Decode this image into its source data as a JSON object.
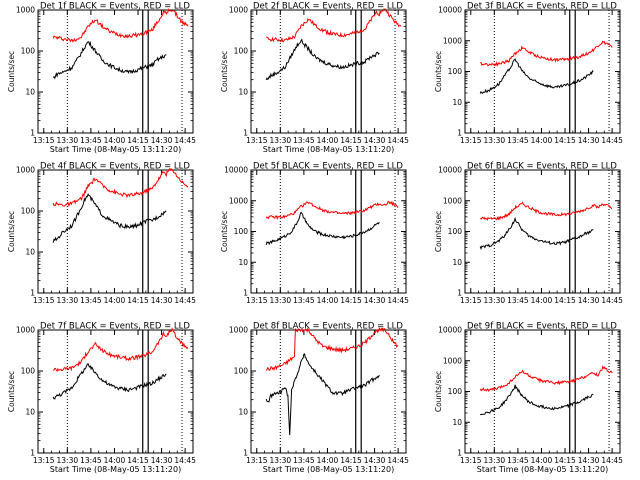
{
  "figure": {
    "background": "#ffffff",
    "series_colors": {
      "events": "#000000",
      "lld": "#ff0000"
    }
  },
  "x_tick_labels": [
    "13:15",
    "13:30",
    "13:45",
    "14:00",
    "14:15",
    "14:30",
    "14:45"
  ],
  "y_tick_labels": [
    "1",
    "10",
    "100",
    "1000",
    "10000"
  ],
  "chart_data": [
    {
      "type": "line",
      "title": "Det 1f BLACK = Events, RED = LLD",
      "xlabel": "Start Time (08-May-05 13:11:20)",
      "ylabel": "Counts/sec",
      "xlim": [
        13.1889,
        14.8333
      ],
      "ylim": [
        1,
        1000
      ],
      "y_scale": "log",
      "series": [
        {
          "color": "#ff0000",
          "x": [
            13.35,
            13.45,
            13.55,
            13.65,
            13.72,
            13.8,
            13.87,
            13.95,
            14.05,
            14.15,
            14.25,
            14.3,
            14.35,
            14.4,
            14.43,
            14.48,
            14.52,
            14.55,
            14.58,
            14.62,
            14.65,
            14.72,
            14.78
          ],
          "values": [
            220,
            200,
            180,
            220,
            400,
            580,
            400,
            300,
            250,
            230,
            250,
            260,
            300,
            320,
            420,
            600,
            900,
            800,
            1000,
            1000,
            800,
            500,
            400
          ]
        },
        {
          "color": "#000000",
          "x": [
            13.35,
            13.4,
            13.45,
            13.55,
            13.62,
            13.68,
            13.72,
            13.8,
            13.87,
            13.95,
            14.05,
            14.15,
            14.25,
            14.32,
            14.4,
            14.45,
            14.55
          ],
          "values": [
            22,
            28,
            30,
            40,
            70,
            120,
            170,
            100,
            60,
            45,
            35,
            30,
            35,
            40,
            45,
            60,
            80
          ]
        }
      ],
      "markers": {
        "dotted": [
          13.5,
          14.717
        ],
        "solid": [
          14.3,
          14.358
        ]
      }
    },
    {
      "type": "line",
      "title": "Det 2f BLACK = Events, RED = LLD",
      "xlabel": "Start Time (08-May-05 13:11:20)",
      "ylabel": "Counts/sec",
      "xlim": [
        13.1889,
        14.8333
      ],
      "ylim": [
        1,
        1000
      ],
      "y_scale": "log",
      "series": [
        {
          "color": "#ff0000",
          "x": [
            13.35,
            13.45,
            13.55,
            13.65,
            13.72,
            13.8,
            13.87,
            13.95,
            14.05,
            14.15,
            14.25,
            14.3,
            14.35,
            14.4,
            14.43,
            14.48,
            14.52,
            14.55,
            14.58,
            14.62,
            14.65,
            14.72,
            14.78
          ],
          "values": [
            200,
            190,
            180,
            220,
            400,
            600,
            420,
            320,
            260,
            240,
            260,
            280,
            320,
            340,
            450,
            650,
            900,
            800,
            1000,
            1000,
            800,
            500,
            400
          ]
        },
        {
          "color": "#000000",
          "x": [
            13.35,
            13.4,
            13.45,
            13.55,
            13.62,
            13.68,
            13.72,
            13.8,
            13.87,
            13.95,
            14.05,
            14.15,
            14.25,
            14.32,
            14.4,
            14.45,
            14.55
          ],
          "values": [
            20,
            25,
            28,
            40,
            80,
            140,
            180,
            110,
            70,
            55,
            45,
            40,
            45,
            50,
            55,
            70,
            90
          ]
        }
      ],
      "markers": {
        "dotted": [
          13.5,
          14.717
        ],
        "solid": [
          14.3,
          14.358
        ]
      }
    },
    {
      "type": "line",
      "title": "Det 3f BLACK = Events, RED = LLD",
      "xlabel": "",
      "ylabel": "Counts/sec",
      "xlim": [
        13.1889,
        14.8333
      ],
      "ylim": [
        1,
        10000
      ],
      "y_scale": "log",
      "series": [
        {
          "color": "#ff0000",
          "x": [
            13.35,
            13.45,
            13.55,
            13.65,
            13.72,
            13.8,
            13.87,
            13.95,
            14.05,
            14.15,
            14.25,
            14.3,
            14.35,
            14.4,
            14.45,
            14.5,
            14.55,
            14.6,
            14.65,
            14.7,
            14.75
          ],
          "values": [
            180,
            170,
            180,
            220,
            380,
            600,
            420,
            320,
            260,
            240,
            250,
            260,
            280,
            300,
            350,
            400,
            500,
            700,
            900,
            800,
            600
          ]
        },
        {
          "color": "#000000",
          "x": [
            13.35,
            13.45,
            13.55,
            13.62,
            13.68,
            13.72,
            13.8,
            13.87,
            13.95,
            14.05,
            14.15,
            14.25,
            14.32,
            14.4,
            14.45,
            14.55
          ],
          "values": [
            20,
            25,
            40,
            80,
            150,
            250,
            100,
            60,
            45,
            35,
            30,
            35,
            40,
            50,
            60,
            100
          ]
        }
      ],
      "markers": {
        "dotted": [
          13.5,
          14.717
        ],
        "solid": [
          14.3,
          14.358
        ]
      }
    },
    {
      "type": "line",
      "title": "Det 4f BLACK = Events, RED = LLD",
      "xlabel": "",
      "ylabel": "Counts/sec",
      "xlim": [
        13.1889,
        14.8333
      ],
      "ylim": [
        1,
        1000
      ],
      "y_scale": "log",
      "series": [
        {
          "color": "#ff0000",
          "x": [
            13.35,
            13.45,
            13.55,
            13.65,
            13.72,
            13.8,
            13.87,
            13.95,
            14.05,
            14.15,
            14.25,
            14.3,
            14.35,
            14.4,
            14.43,
            14.48,
            14.52,
            14.55,
            14.58,
            14.62,
            14.65,
            14.72,
            14.78
          ],
          "values": [
            150,
            140,
            150,
            200,
            400,
            620,
            420,
            320,
            260,
            240,
            260,
            280,
            320,
            350,
            450,
            650,
            900,
            800,
            1000,
            1000,
            800,
            500,
            400
          ]
        },
        {
          "color": "#000000",
          "x": [
            13.35,
            13.4,
            13.45,
            13.55,
            13.62,
            13.68,
            13.72,
            13.8,
            13.87,
            13.95,
            14.05,
            14.15,
            14.25,
            14.32,
            14.4,
            14.45,
            14.55
          ],
          "values": [
            18,
            22,
            30,
            45,
            90,
            180,
            250,
            140,
            80,
            60,
            45,
            40,
            45,
            55,
            60,
            70,
            100
          ]
        }
      ],
      "markers": {
        "dotted": [
          13.5,
          14.717
        ],
        "solid": [
          14.3,
          14.358
        ]
      }
    },
    {
      "type": "line",
      "title": "Det 5f BLACK = Events, RED = LLD",
      "xlabel": "",
      "ylabel": "Counts/sec",
      "xlim": [
        13.1889,
        14.8333
      ],
      "ylim": [
        1,
        10000
      ],
      "y_scale": "log",
      "series": [
        {
          "color": "#ff0000",
          "x": [
            13.35,
            13.45,
            13.55,
            13.65,
            13.72,
            13.8,
            13.87,
            13.95,
            14.05,
            14.15,
            14.25,
            14.3,
            14.35,
            14.4,
            14.45,
            14.5,
            14.55,
            14.6,
            14.65,
            14.7,
            14.75
          ],
          "values": [
            300,
            290,
            300,
            400,
            650,
            900,
            650,
            500,
            420,
            380,
            400,
            420,
            450,
            500,
            600,
            700,
            800,
            700,
            900,
            800,
            600
          ]
        },
        {
          "color": "#000000",
          "x": [
            13.35,
            13.45,
            13.55,
            13.62,
            13.68,
            13.72,
            13.8,
            13.87,
            13.95,
            14.05,
            14.15,
            14.25,
            14.32,
            14.4,
            14.45,
            14.55
          ],
          "values": [
            40,
            50,
            70,
            100,
            200,
            400,
            150,
            100,
            80,
            70,
            65,
            70,
            80,
            100,
            120,
            200
          ]
        }
      ],
      "markers": {
        "dotted": [
          13.5,
          14.717
        ],
        "solid": [
          14.3,
          14.358
        ]
      }
    },
    {
      "type": "line",
      "title": "Det 6f BLACK = Events, RED = LLD",
      "xlabel": "",
      "ylabel": "Counts/sec",
      "xlim": [
        13.1889,
        14.8333
      ],
      "ylim": [
        1,
        10000
      ],
      "y_scale": "log",
      "series": [
        {
          "color": "#ff0000",
          "x": [
            13.35,
            13.45,
            13.55,
            13.65,
            13.72,
            13.8,
            13.87,
            13.95,
            14.05,
            14.15,
            14.25,
            14.3,
            14.35,
            14.4,
            14.45,
            14.5,
            14.55,
            14.6,
            14.65,
            14.7,
            14.75
          ],
          "values": [
            270,
            260,
            270,
            350,
            600,
            800,
            600,
            450,
            380,
            350,
            360,
            380,
            400,
            450,
            500,
            600,
            700,
            600,
            800,
            700,
            550
          ]
        },
        {
          "color": "#000000",
          "x": [
            13.35,
            13.45,
            13.55,
            13.62,
            13.68,
            13.72,
            13.8,
            13.87,
            13.95,
            14.05,
            14.15,
            14.25,
            14.32,
            14.4,
            14.45,
            14.55
          ],
          "values": [
            30,
            35,
            50,
            80,
            150,
            250,
            110,
            70,
            55,
            45,
            40,
            45,
            55,
            65,
            80,
            110
          ]
        }
      ],
      "markers": {
        "dotted": [
          13.5,
          14.717
        ],
        "solid": [
          14.3,
          14.358
        ]
      }
    },
    {
      "type": "line",
      "title": "Det 7f BLACK = Events, RED = LLD",
      "xlabel": "Start Time (08-May-05 13:11:20)",
      "ylabel": "Counts/sec",
      "xlim": [
        13.1889,
        14.8333
      ],
      "ylim": [
        1,
        1000
      ],
      "y_scale": "log",
      "series": [
        {
          "color": "#ff0000",
          "x": [
            13.35,
            13.45,
            13.55,
            13.65,
            13.72,
            13.8,
            13.87,
            13.95,
            14.05,
            14.15,
            14.25,
            14.3,
            14.35,
            14.4,
            14.43,
            14.48,
            14.52,
            14.55,
            14.58,
            14.62,
            14.65,
            14.72,
            14.78
          ],
          "values": [
            110,
            110,
            120,
            170,
            300,
            450,
            320,
            250,
            220,
            200,
            220,
            230,
            260,
            290,
            380,
            550,
            800,
            700,
            900,
            1000,
            700,
            450,
            350
          ]
        },
        {
          "color": "#000000",
          "x": [
            13.35,
            13.4,
            13.45,
            13.55,
            13.62,
            13.68,
            13.72,
            13.8,
            13.87,
            13.95,
            14.05,
            14.15,
            14.25,
            14.32,
            14.4,
            14.45,
            14.55
          ],
          "values": [
            22,
            25,
            28,
            40,
            70,
            110,
            140,
            90,
            60,
            45,
            38,
            35,
            40,
            45,
            50,
            60,
            85
          ]
        }
      ],
      "markers": {
        "dotted": [
          13.5,
          14.717
        ],
        "solid": [
          14.3,
          14.358
        ]
      }
    },
    {
      "type": "line",
      "title": "Det 8f BLACK = Events, RED = LLD",
      "xlabel": "Start Time (08-May-05 13:11:20)",
      "ylabel": "",
      "xlim": [
        13.1889,
        14.8333
      ],
      "ylim": [
        1,
        1000
      ],
      "y_scale": "log",
      "series": [
        {
          "color": "#ff0000",
          "x": [
            13.35,
            13.45,
            13.55,
            13.62,
            13.65,
            13.66,
            13.68,
            13.72,
            13.8,
            13.87,
            13.95,
            14.05,
            14.15,
            14.25,
            14.3,
            14.35,
            14.4,
            14.45,
            14.5,
            14.55,
            14.6,
            14.65,
            14.7,
            14.75
          ],
          "values": [
            110,
            120,
            150,
            200,
            220,
            1000,
            1000,
            1000,
            1000,
            600,
            400,
            350,
            320,
            350,
            380,
            420,
            500,
            650,
            900,
            1000,
            1000,
            800,
            500,
            400
          ]
        },
        {
          "color": "#000000",
          "x": [
            13.35,
            13.38,
            13.4,
            13.45,
            13.5,
            13.55,
            13.58,
            13.6,
            13.62,
            13.75,
            13.78,
            13.8,
            14.05,
            14.15,
            14.25,
            14.32,
            14.4,
            14.45,
            14.55
          ],
          "values": [
            20,
            18,
            25,
            28,
            30,
            40,
            25,
            3,
            35,
            250,
            200,
            150,
            30,
            28,
            35,
            40,
            45,
            55,
            80
          ]
        }
      ],
      "markers": {
        "dotted": [
          13.5,
          14.717
        ],
        "solid": [
          14.3,
          14.358
        ]
      }
    },
    {
      "type": "line",
      "title": "Det 9f BLACK = Events, RED = LLD",
      "xlabel": "Start Time (08-May-05 13:11:20)",
      "ylabel": "Counts/sec",
      "xlim": [
        13.1889,
        14.8333
      ],
      "ylim": [
        1,
        10000
      ],
      "y_scale": "log",
      "series": [
        {
          "color": "#ff0000",
          "x": [
            13.35,
            13.45,
            13.55,
            13.65,
            13.72,
            13.8,
            13.87,
            13.95,
            14.05,
            14.15,
            14.25,
            14.3,
            14.35,
            14.4,
            14.45,
            14.5,
            14.55,
            14.6,
            14.65,
            14.7,
            14.75
          ],
          "values": [
            120,
            110,
            130,
            180,
            300,
            450,
            320,
            250,
            210,
            190,
            200,
            210,
            230,
            260,
            300,
            350,
            400,
            350,
            600,
            500,
            400
          ]
        },
        {
          "color": "#000000",
          "x": [
            13.35,
            13.45,
            13.55,
            13.62,
            13.68,
            13.72,
            13.8,
            13.87,
            13.95,
            14.05,
            14.15,
            14.25,
            14.32,
            14.4,
            14.45,
            14.55
          ],
          "values": [
            18,
            22,
            30,
            50,
            90,
            150,
            70,
            45,
            35,
            30,
            28,
            32,
            38,
            45,
            55,
            80
          ]
        }
      ],
      "markers": {
        "dotted": [
          13.5,
          14.717
        ],
        "solid": [
          14.3,
          14.358
        ]
      }
    }
  ]
}
